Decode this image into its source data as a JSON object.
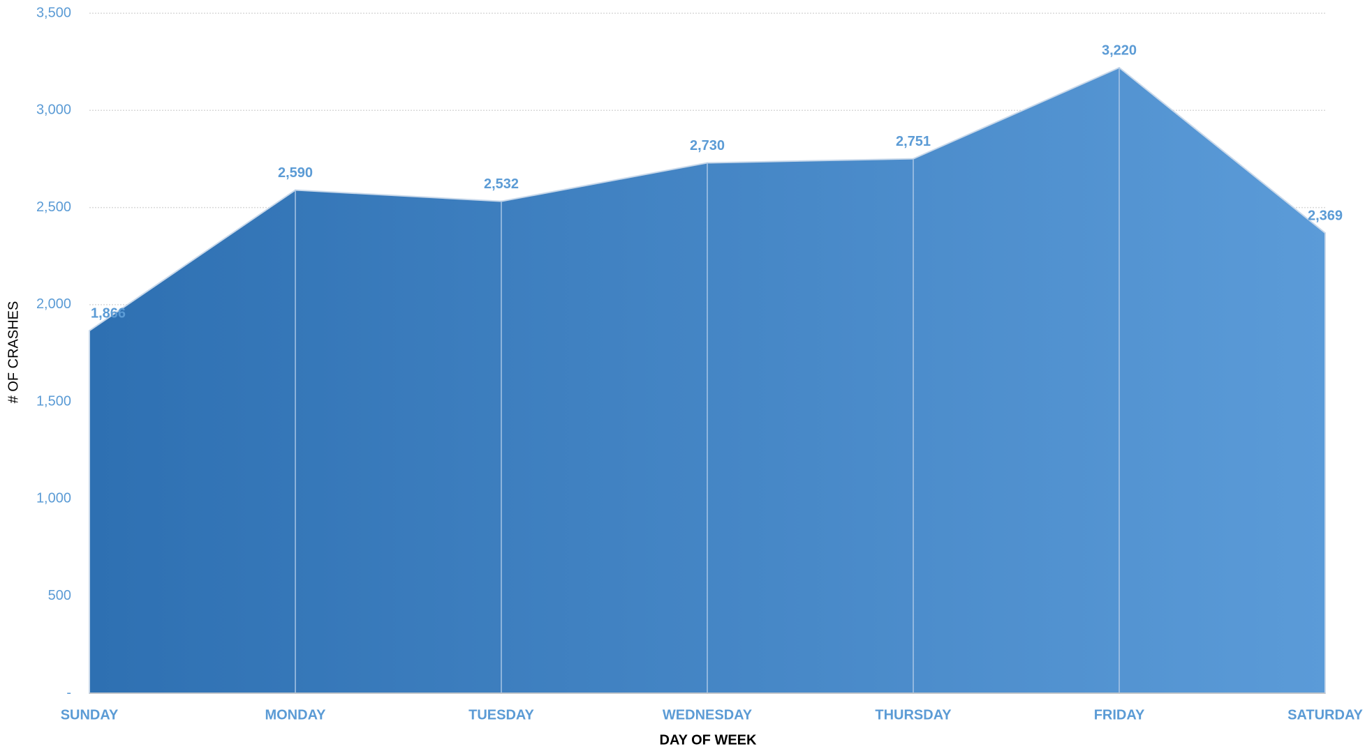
{
  "chart_data": {
    "type": "area",
    "x_label": "DAY OF WEEK",
    "y_label": "# OF CRASHES",
    "categories": [
      "SUNDAY",
      "MONDAY",
      "TUESDAY",
      "WEDNESDAY",
      "THURSDAY",
      "FRIDAY",
      "SATURDAY"
    ],
    "values": [
      1866,
      2590,
      2532,
      2730,
      2751,
      3220,
      2369
    ],
    "value_labels": [
      "1,866",
      "2,590",
      "2,532",
      "2,730",
      "2,751",
      "3,220",
      "2,369"
    ],
    "colors": [
      "#2e70b2",
      "#5b9bd8"
    ],
    "ylim": [
      0,
      3500
    ],
    "yticks": [
      {
        "value": 0,
        "label": "-"
      },
      500,
      {
        "value": 1000,
        "label": "1,000"
      },
      {
        "value": 1500,
        "label": "1,500"
      },
      {
        "value": 2000,
        "label": "2,000"
      },
      {
        "value": 2500,
        "label": "2,500"
      },
      {
        "value": 3000,
        "label": "3,000"
      },
      {
        "value": 3500,
        "label": "3,500"
      }
    ],
    "grid": true
  }
}
